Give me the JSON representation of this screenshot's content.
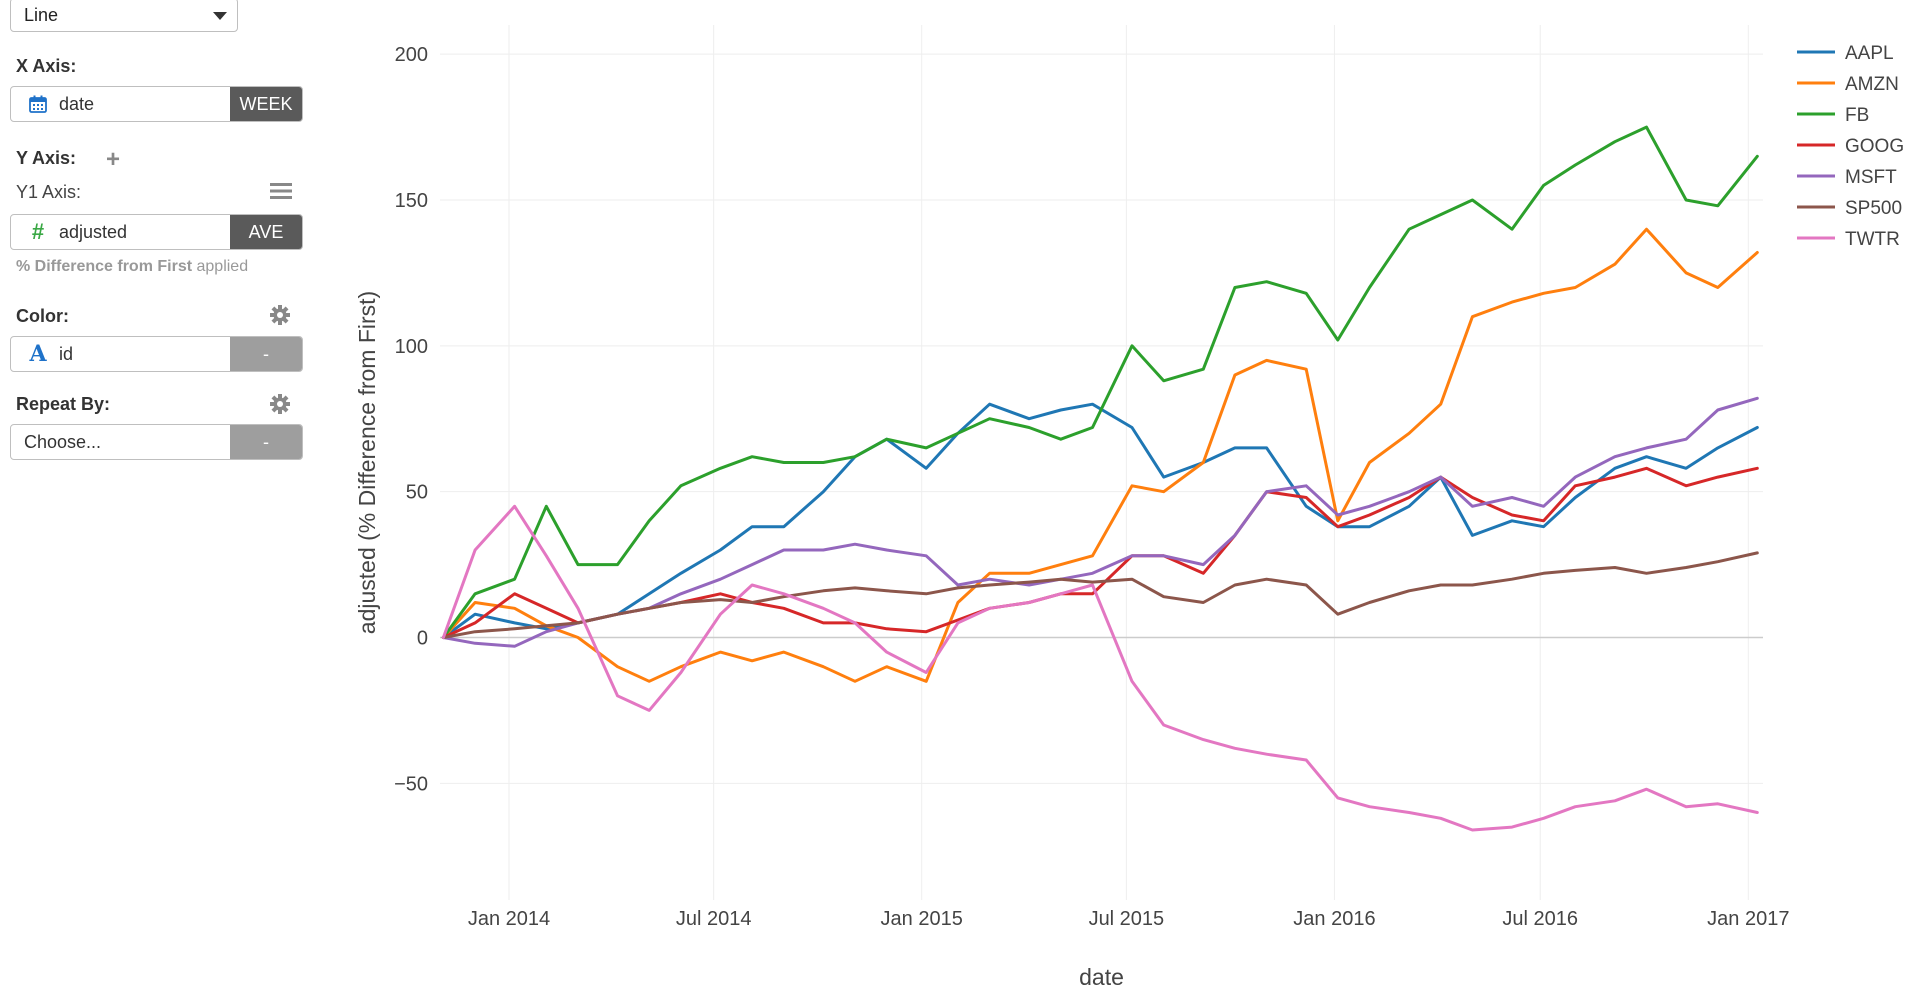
{
  "sidebar": {
    "chart_type": {
      "value": "Line"
    },
    "x_axis": {
      "label": "X Axis:",
      "field": "date",
      "aggregation": "WEEK"
    },
    "y_axis": {
      "label": "Y Axis:",
      "y1_label": "Y1 Axis:",
      "field": "adjusted",
      "aggregation": "AVE",
      "note_bold": "% Difference from First",
      "note_rest": " applied"
    },
    "color": {
      "label": "Color:",
      "field": "id",
      "aggregation": "-"
    },
    "repeat_by": {
      "label": "Repeat By:",
      "placeholder": "Choose...",
      "aggregation": "-"
    }
  },
  "chart_data": {
    "type": "line",
    "xlabel": "date",
    "ylabel": "adjusted (% Difference from First)",
    "x_tick_labels": [
      "Jan 2014",
      "Jul 2014",
      "Jan 2015",
      "Jul 2015",
      "Jan 2016",
      "Jul 2016",
      "Jan 2017"
    ],
    "x_tick_dates": [
      "2014-01-01",
      "2014-07-01",
      "2015-01-01",
      "2015-07-01",
      "2016-01-01",
      "2016-07-01",
      "2017-01-01"
    ],
    "xlim": [
      "2013-11-01",
      "2017-01-14"
    ],
    "ylim": [
      -90,
      210
    ],
    "yticks": [
      -50,
      0,
      50,
      100,
      150,
      200
    ],
    "grid": true,
    "legend_position": "top-right",
    "x": [
      "2013-11-04",
      "2013-12-02",
      "2014-01-06",
      "2014-02-03",
      "2014-03-03",
      "2014-04-07",
      "2014-05-05",
      "2014-06-02",
      "2014-07-07",
      "2014-08-04",
      "2014-09-01",
      "2014-10-06",
      "2014-11-03",
      "2014-12-01",
      "2015-01-05",
      "2015-02-02",
      "2015-03-02",
      "2015-04-06",
      "2015-05-04",
      "2015-06-01",
      "2015-07-06",
      "2015-08-03",
      "2015-09-07",
      "2015-10-05",
      "2015-11-02",
      "2015-12-07",
      "2016-01-04",
      "2016-02-01",
      "2016-03-07",
      "2016-04-04",
      "2016-05-02",
      "2016-06-06",
      "2016-07-04",
      "2016-08-01",
      "2016-09-05",
      "2016-10-03",
      "2016-11-07",
      "2016-12-05",
      "2017-01-09"
    ],
    "series": [
      {
        "name": "AAPL",
        "color": "#1f77b4",
        "values": [
          0,
          8,
          5,
          3,
          5,
          8,
          15,
          22,
          30,
          38,
          38,
          50,
          62,
          68,
          58,
          70,
          80,
          75,
          78,
          80,
          72,
          55,
          60,
          65,
          65,
          45,
          38,
          38,
          45,
          55,
          35,
          40,
          38,
          48,
          58,
          62,
          58,
          65,
          72
        ]
      },
      {
        "name": "AMZN",
        "color": "#ff7f0e",
        "values": [
          0,
          12,
          10,
          4,
          0,
          -10,
          -15,
          -10,
          -5,
          -8,
          -5,
          -10,
          -15,
          -10,
          -15,
          12,
          22,
          22,
          25,
          28,
          52,
          50,
          60,
          90,
          95,
          92,
          40,
          60,
          70,
          80,
          110,
          115,
          118,
          120,
          128,
          140,
          125,
          120,
          132
        ]
      },
      {
        "name": "FB",
        "color": "#2ca02c",
        "values": [
          0,
          15,
          20,
          45,
          25,
          25,
          40,
          52,
          58,
          62,
          60,
          60,
          62,
          68,
          65,
          70,
          75,
          72,
          68,
          72,
          100,
          88,
          92,
          120,
          122,
          118,
          102,
          120,
          140,
          145,
          150,
          140,
          155,
          162,
          170,
          175,
          150,
          148,
          165
        ]
      },
      {
        "name": "GOOG",
        "color": "#d62728",
        "values": [
          0,
          5,
          15,
          10,
          5,
          8,
          10,
          12,
          15,
          12,
          10,
          5,
          5,
          3,
          2,
          6,
          10,
          12,
          15,
          15,
          28,
          28,
          22,
          35,
          50,
          48,
          38,
          42,
          48,
          55,
          48,
          42,
          40,
          52,
          55,
          58,
          52,
          55,
          58
        ]
      },
      {
        "name": "MSFT",
        "color": "#9467bd",
        "values": [
          0,
          -2,
          -3,
          2,
          5,
          8,
          10,
          15,
          20,
          25,
          30,
          30,
          32,
          30,
          28,
          18,
          20,
          18,
          20,
          22,
          28,
          28,
          25,
          35,
          50,
          52,
          42,
          45,
          50,
          55,
          45,
          48,
          45,
          55,
          62,
          65,
          68,
          78,
          82
        ]
      },
      {
        "name": "SP500",
        "color": "#8c564b",
        "values": [
          0,
          2,
          3,
          4,
          5,
          8,
          10,
          12,
          13,
          12,
          14,
          16,
          17,
          16,
          15,
          17,
          18,
          19,
          20,
          19,
          20,
          14,
          12,
          18,
          20,
          18,
          8,
          12,
          16,
          18,
          18,
          20,
          22,
          23,
          24,
          22,
          24,
          26,
          29
        ]
      },
      {
        "name": "TWTR",
        "color": "#e377c2",
        "values": [
          0,
          30,
          45,
          28,
          10,
          -20,
          -25,
          -12,
          8,
          18,
          15,
          10,
          5,
          -5,
          -12,
          5,
          10,
          12,
          15,
          18,
          -15,
          -30,
          -35,
          -38,
          -40,
          -42,
          -55,
          -58,
          -60,
          -62,
          -66,
          -65,
          -62,
          -58,
          -56,
          -52,
          -58,
          -57,
          -60
        ]
      }
    ]
  }
}
